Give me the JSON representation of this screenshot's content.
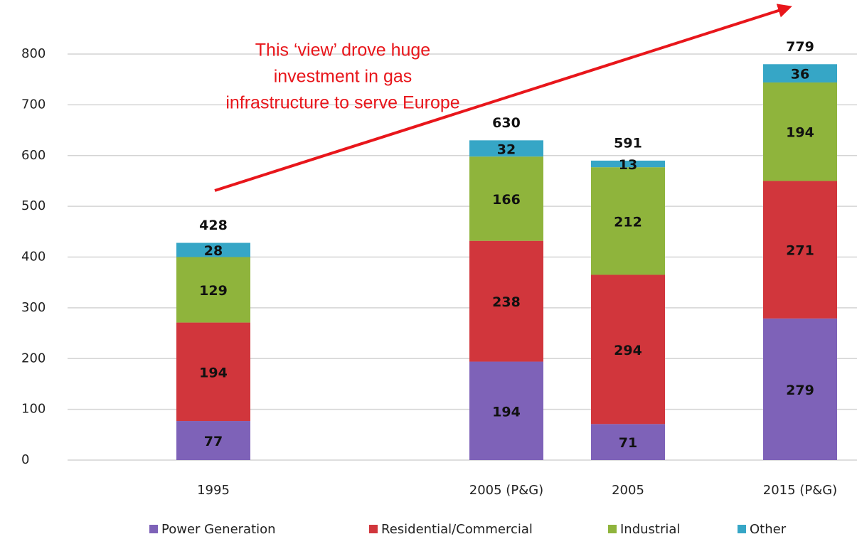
{
  "chart_data": {
    "type": "stacked_bar",
    "categories": [
      "1995",
      "2005 (P&G)",
      "2005",
      "2015 (P&G)"
    ],
    "series": [
      {
        "name": "Power Generation",
        "color": "#7e62b8",
        "values": [
          77,
          194,
          71,
          279
        ]
      },
      {
        "name": "Residential/Commercial",
        "color": "#d1363c",
        "values": [
          194,
          238,
          294,
          271
        ]
      },
      {
        "name": "Industrial",
        "color": "#8fb43c",
        "values": [
          129,
          166,
          212,
          194
        ]
      },
      {
        "name": "Other",
        "color": "#36a6c6",
        "values": [
          28,
          32,
          13,
          36
        ]
      }
    ],
    "totals": [
      428,
      630,
      591,
      779
    ],
    "ylim": [
      0,
      800
    ],
    "yticks": [
      0,
      100,
      200,
      300,
      400,
      500,
      600,
      700,
      800
    ],
    "grid": true,
    "legend": "bottom",
    "annotation": [
      "This ‘view’ drove huge",
      "investment in gas",
      "infrastructure to serve Europe"
    ],
    "annotation_color": "#e8161b"
  }
}
